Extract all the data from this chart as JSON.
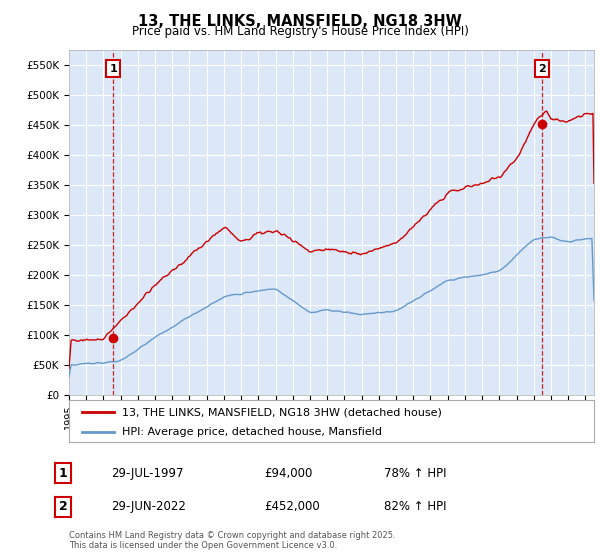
{
  "title": "13, THE LINKS, MANSFIELD, NG18 3HW",
  "subtitle": "Price paid vs. HM Land Registry's House Price Index (HPI)",
  "legend_line1": "13, THE LINKS, MANSFIELD, NG18 3HW (detached house)",
  "legend_line2": "HPI: Average price, detached house, Mansfield",
  "annotation1_label": "1",
  "annotation1_date": "29-JUL-1997",
  "annotation1_price": "£94,000",
  "annotation1_hpi": "78% ↑ HPI",
  "annotation1_year": 1997.58,
  "annotation1_value": 94000,
  "annotation2_label": "2",
  "annotation2_date": "29-JUN-2022",
  "annotation2_price": "£452,000",
  "annotation2_hpi": "82% ↑ HPI",
  "annotation2_year": 2022.5,
  "annotation2_value": 452000,
  "footer": "Contains HM Land Registry data © Crown copyright and database right 2025.\nThis data is licensed under the Open Government Licence v3.0.",
  "red_color": "#cc0000",
  "blue_color": "#6699cc",
  "background_color": "#dce8f8",
  "grid_color": "#ffffff",
  "ylim": [
    0,
    575000
  ],
  "xlim_start": 1995.0,
  "xlim_end": 2025.5
}
